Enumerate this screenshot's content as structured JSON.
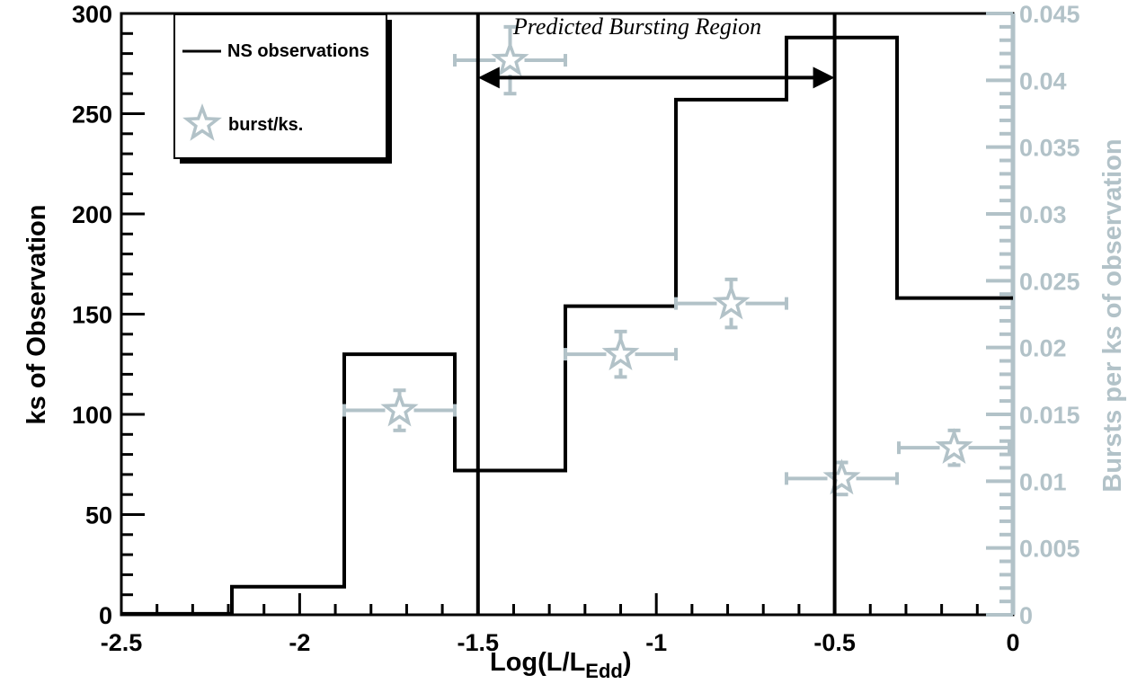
{
  "chart_data": {
    "type": "histogram-with-errorbars",
    "title": "",
    "xlabel_main": "Log(L/L",
    "xlabel_sub": "Edd",
    "xlabel_close": ")",
    "ylabel_left": "ks of Observation",
    "ylabel_right": "Bursts per ks of observation",
    "xlim": [
      -2.5,
      0
    ],
    "ylim_left": [
      0,
      300
    ],
    "ylim_right": [
      0,
      0.045
    ],
    "x_ticks": [
      "-2.5",
      "-2",
      "-1.5",
      "-1",
      "-0.5",
      "0"
    ],
    "y_left_ticks": [
      "0",
      "50",
      "100",
      "150",
      "200",
      "250",
      "300"
    ],
    "y_right_ticks": [
      "0",
      "0.005",
      "0.01",
      "0.015",
      "0.02",
      "0.025",
      "0.03",
      "0.035",
      "0.04",
      "0.045"
    ],
    "histogram": {
      "name": "NS observations",
      "bin_edges": [
        -2.5,
        -2.19,
        -1.875,
        -1.565,
        -1.255,
        -0.945,
        -0.635,
        -0.325,
        0.0
      ],
      "values": [
        0.5,
        14,
        130,
        72,
        154,
        257,
        288,
        158
      ]
    },
    "bursts": {
      "name": "burst/ks.",
      "points": [
        {
          "x": -1.72,
          "y": 0.0153,
          "xerr": 0.155,
          "yerr": 0.0015
        },
        {
          "x": -1.41,
          "y": 0.0415,
          "xerr": 0.155,
          "yerr": 0.0025
        },
        {
          "x": -1.1,
          "y": 0.0195,
          "xerr": 0.155,
          "yerr": 0.0017
        },
        {
          "x": -0.79,
          "y": 0.0233,
          "xerr": 0.155,
          "yerr": 0.0018
        },
        {
          "x": -0.48,
          "y": 0.0102,
          "xerr": 0.155,
          "yerr": 0.0012
        },
        {
          "x": -0.165,
          "y": 0.0125,
          "xerr": 0.155,
          "yerr": 0.0013
        }
      ]
    },
    "predicted_region": {
      "label": "Predicted Bursting Region",
      "x_start": -1.5,
      "x_end": -0.5,
      "arrow_y_left_units": 268
    },
    "legend": {
      "position": "top-left",
      "entries": [
        "NS observations",
        "burst/ks."
      ]
    },
    "grid": false
  },
  "colors": {
    "histogram": "#000000",
    "bursts": "#b2c2c8",
    "right_axis": "#b2c2c8"
  }
}
